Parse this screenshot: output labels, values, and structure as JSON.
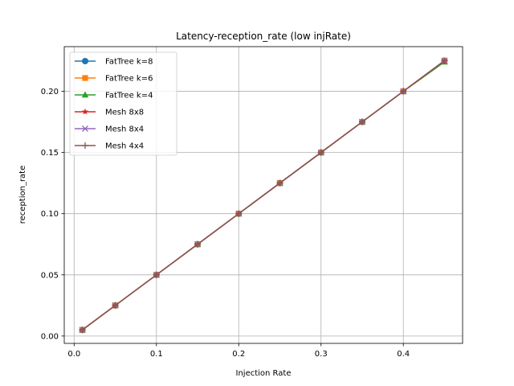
{
  "chart_data": {
    "type": "line",
    "title": "Latency-reception_rate (low injRate)",
    "xlabel": "Injection Rate",
    "ylabel": "reception_rate",
    "xlim": [
      -0.012,
      0.472
    ],
    "ylim": [
      -0.006,
      0.2365
    ],
    "xticks": [
      "0.0",
      "0.1",
      "0.2",
      "0.3",
      "0.4"
    ],
    "yticks": [
      "0.00",
      "0.05",
      "0.10",
      "0.15",
      "0.20"
    ],
    "grid": true,
    "legend_position": "upper-left",
    "x": [
      0.01,
      0.05,
      0.1,
      0.15,
      0.2,
      0.25,
      0.3,
      0.35,
      0.4,
      0.45
    ],
    "series": [
      {
        "name": "FatTree k=8",
        "color": "#1f77b4",
        "marker": "circle",
        "values": [
          0.005,
          0.025,
          0.05,
          0.075,
          0.1,
          0.125,
          0.15,
          0.175,
          0.2,
          0.225
        ]
      },
      {
        "name": "FatTree k=6",
        "color": "#ff7f0e",
        "marker": "square",
        "values": [
          0.005,
          0.025,
          0.05,
          0.075,
          0.1,
          0.125,
          0.15,
          0.175,
          0.2,
          0.225
        ]
      },
      {
        "name": "FatTree k=4",
        "color": "#2ca02c",
        "marker": "triangle",
        "values": [
          0.005,
          0.025,
          0.05,
          0.075,
          0.1,
          0.125,
          0.15,
          0.175,
          0.2,
          0.224
        ]
      },
      {
        "name": "Mesh 8x8",
        "color": "#d62728",
        "marker": "star",
        "values": [
          0.005,
          0.025,
          0.05,
          0.075,
          0.1,
          0.125,
          0.15,
          0.175,
          0.2,
          0.225
        ]
      },
      {
        "name": "Mesh 8x4",
        "color": "#9467bd",
        "marker": "x",
        "values": [
          0.005,
          0.025,
          0.05,
          0.075,
          0.1,
          0.125,
          0.15,
          0.175,
          0.2,
          0.225
        ]
      },
      {
        "name": "Mesh 4x4",
        "color": "#8c564b",
        "marker": "plus",
        "values": [
          0.005,
          0.025,
          0.05,
          0.075,
          0.1,
          0.125,
          0.15,
          0.175,
          0.2,
          0.225
        ]
      }
    ]
  }
}
